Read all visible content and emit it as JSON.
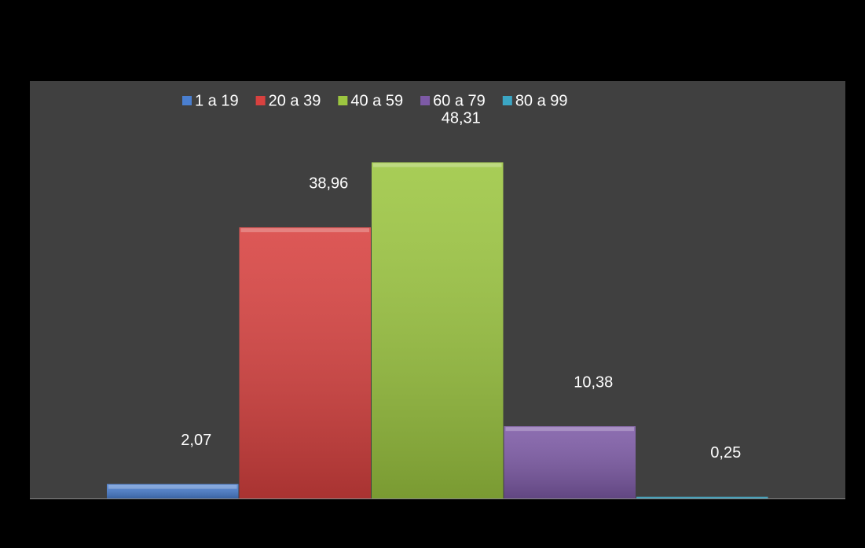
{
  "chart_data": {
    "type": "bar",
    "categories": [
      null
    ],
    "series": [
      {
        "name": "1 a 19",
        "color": "#4a7fd0",
        "values": [
          2.07
        ],
        "value_labels": [
          "2,07"
        ]
      },
      {
        "name": "20 a 39",
        "color": "#d8413f",
        "values": [
          38.96
        ],
        "value_labels": [
          "38,96"
        ]
      },
      {
        "name": "40 a 59",
        "color": "#9cc640",
        "values": [
          48.31
        ],
        "value_labels": [
          "48,31"
        ]
      },
      {
        "name": "60 a 79",
        "color": "#7d5aa6",
        "values": [
          10.38
        ],
        "value_labels": [
          "10,38"
        ]
      },
      {
        "name": "80 a 99",
        "color": "#3ba6c4",
        "values": [
          0.25
        ],
        "value_labels": [
          "0,25"
        ]
      }
    ],
    "ylim": [
      0,
      60
    ],
    "legend": "top"
  }
}
